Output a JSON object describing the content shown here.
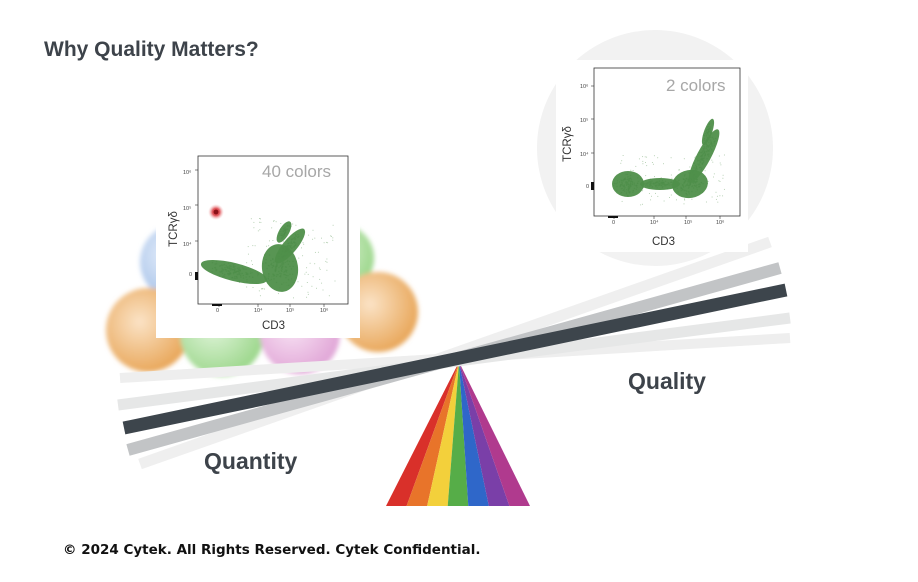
{
  "slide": {
    "title": "Why Quality Matters?",
    "quantity_label": "Quantity",
    "quality_label": "Quality",
    "footer": "© 2024 Cytek. All Rights Reserved. Cytek Confidential."
  },
  "plots": {
    "left": {
      "title": "40 colors",
      "xlabel": "CD3",
      "ylabel": "TCRγδ",
      "y_ticks": [
        "10⁶",
        "10⁵",
        "10⁴",
        "0"
      ],
      "x_ticks": [
        "0",
        "10⁴",
        "10⁵",
        "10⁶"
      ],
      "point_color": "#4f8f4a"
    },
    "right": {
      "title": "2 colors",
      "xlabel": "CD3",
      "ylabel": "TCRγδ",
      "y_ticks": [
        "10⁶",
        "10⁵",
        "10⁴",
        "0"
      ],
      "x_ticks": [
        "0",
        "10⁴",
        "10⁵",
        "10⁶"
      ],
      "point_color": "#4f8f4a"
    }
  },
  "colors": {
    "beam_dark": "#3d454c",
    "beam_gray": "#c2c4c6",
    "prism": [
      "#d9302a",
      "#e8742a",
      "#f3d03b",
      "#56ad48",
      "#2f67c9",
      "#7a3fa8",
      "#b03a8e"
    ]
  }
}
